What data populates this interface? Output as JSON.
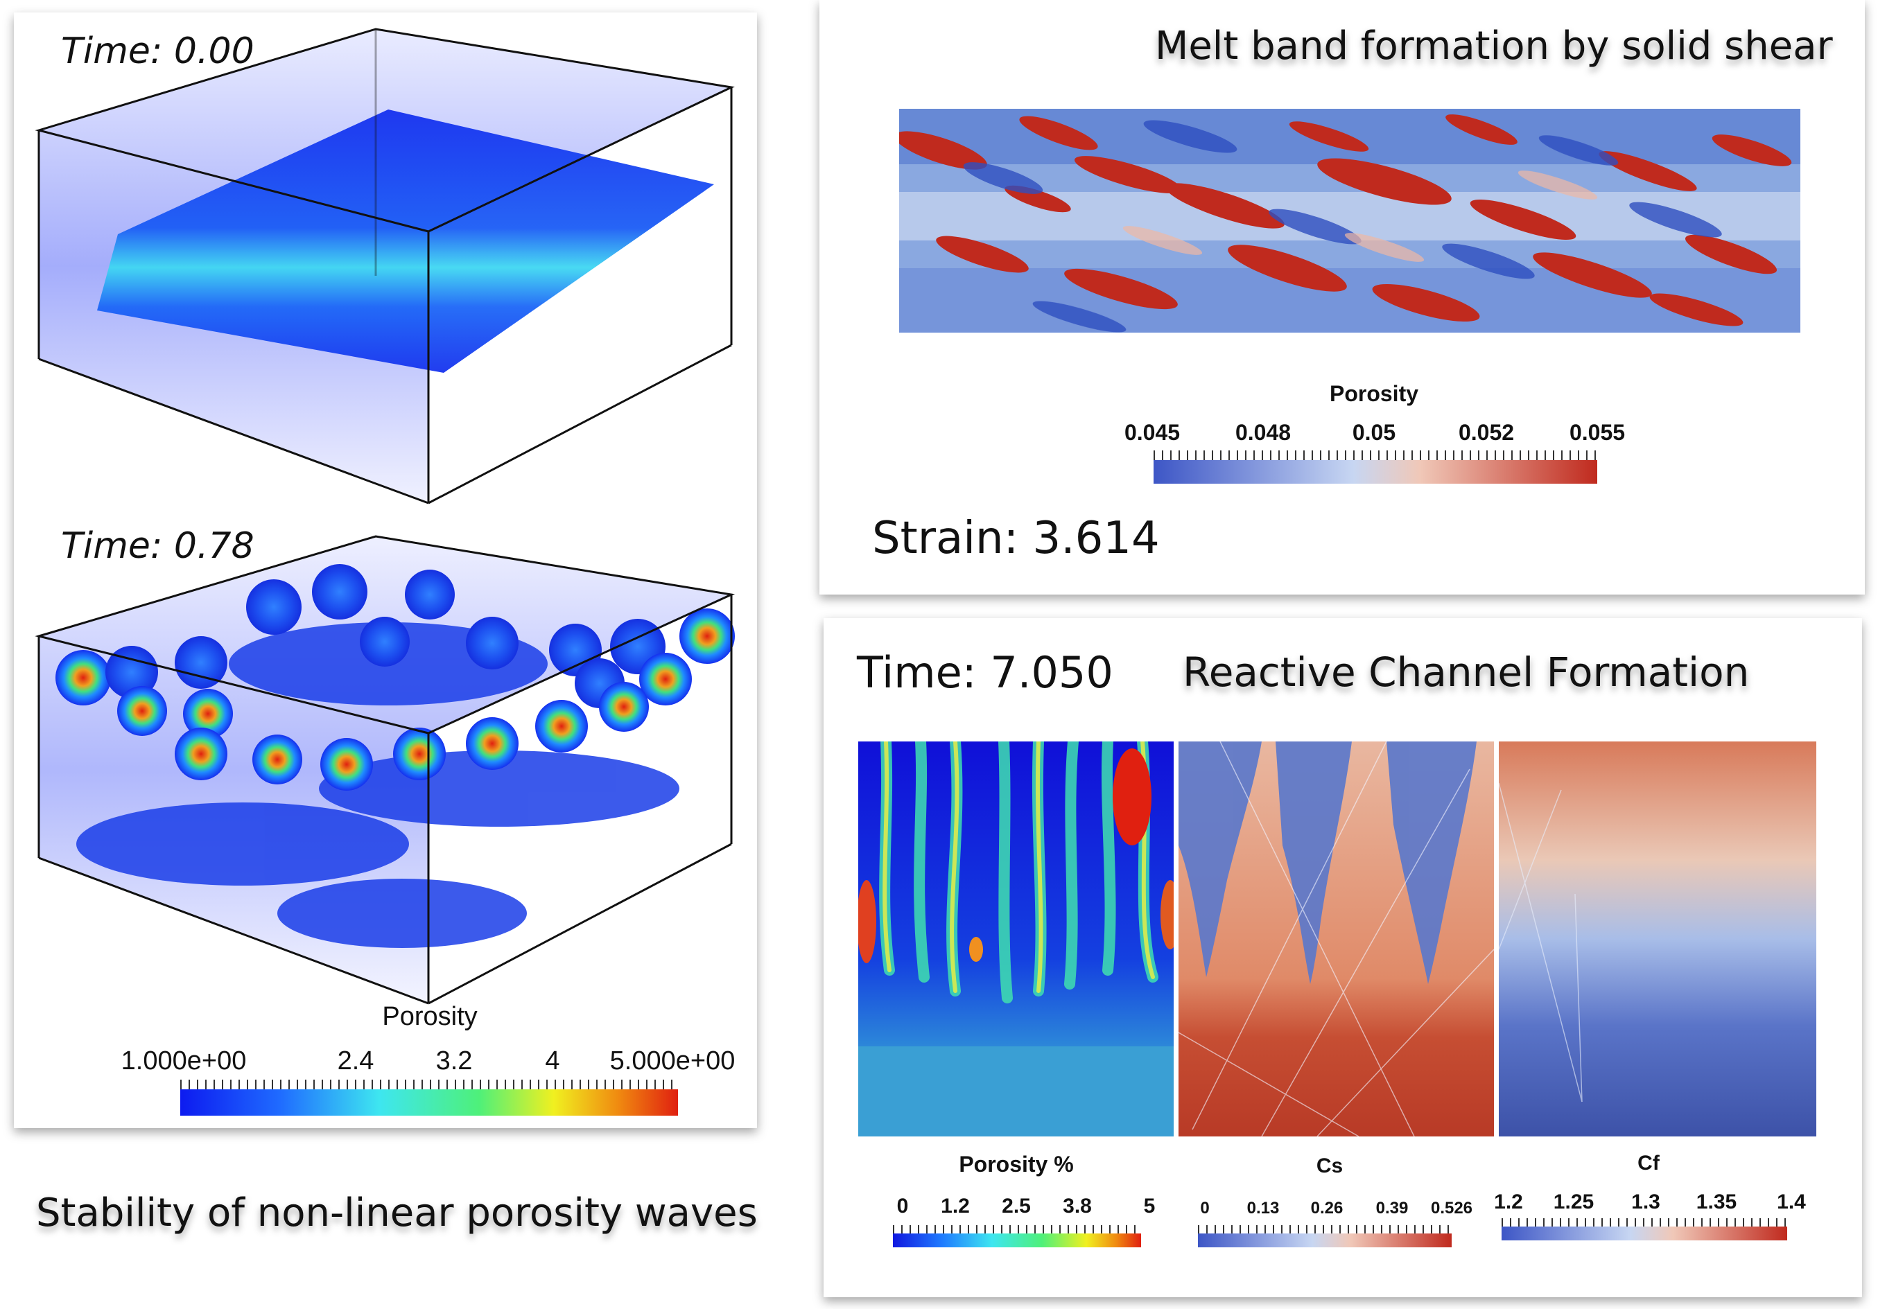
{
  "left": {
    "time_top": "Time: 0.00",
    "time_bottom": "Time: 0.78",
    "colorbar_title": "Porosity",
    "colorbar_ticks": [
      "1.000e+00",
      "2.4",
      "3.2",
      "4",
      "5.000e+00"
    ],
    "caption": "Stability of non-linear porosity waves",
    "colors": [
      "#0d1bf0",
      "#1f6bff",
      "#3ee6f0",
      "#4ef07a",
      "#f0f020",
      "#f08a10",
      "#e02010"
    ]
  },
  "shear": {
    "title": "Melt band formation by solid shear",
    "colorbar_title": "Porosity",
    "colorbar_ticks": [
      "0.045",
      "0.048",
      "0.05",
      "0.052",
      "0.055"
    ],
    "strain": "Strain: 3.614",
    "colors": [
      "#3d56c6",
      "#c7d6f2",
      "#f0c8b8",
      "#c02a1e"
    ]
  },
  "reactive": {
    "time": "Time: 7.050",
    "title": "Reactive Channel Formation",
    "bars": [
      {
        "title": "Porosity %",
        "ticks": [
          "0",
          "1.2",
          "2.5",
          "3.8",
          "5"
        ]
      },
      {
        "title": "Cs",
        "ticks": [
          "0",
          "0.13",
          "0.26",
          "0.39",
          "0.526"
        ]
      },
      {
        "title": "Cf",
        "ticks": [
          "1.2",
          "1.25",
          "1.3",
          "1.35",
          "1.4"
        ]
      }
    ]
  }
}
